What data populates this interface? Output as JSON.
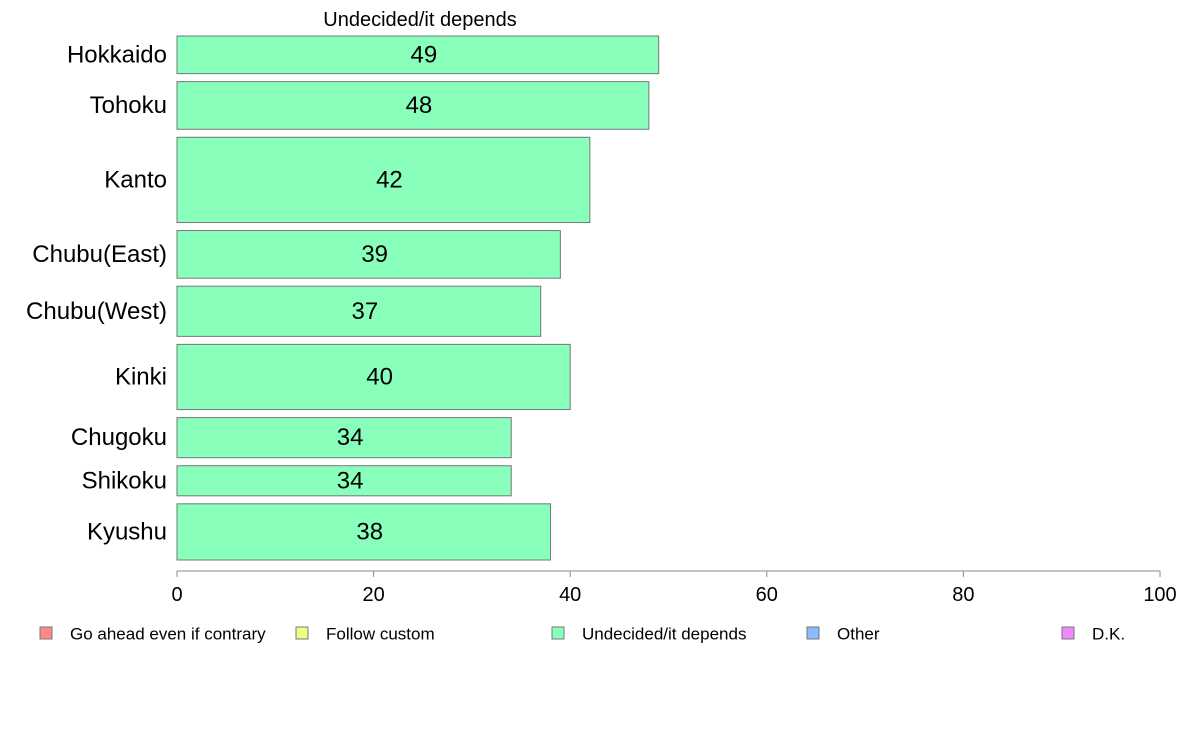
{
  "chart_data": {
    "type": "bar",
    "orientation": "horizontal",
    "title": "Undecided/it depends",
    "categories": [
      "Hokkaido",
      "Tohoku",
      "Kanto",
      "Chubu(East)",
      "Chubu(West)",
      "Kinki",
      "Chugoku",
      "Shikoku",
      "Kyushu"
    ],
    "values": [
      49,
      48,
      42,
      39,
      37,
      40,
      34,
      34,
      38
    ],
    "bar_relative_weights": [
      0.75,
      0.95,
      1.7,
      0.95,
      1.0,
      1.3,
      0.8,
      0.6,
      1.12
    ],
    "xlim": [
      0,
      100
    ],
    "xticks": [
      0,
      20,
      40,
      60,
      80,
      100
    ],
    "bar_color": "#88ffbb",
    "bar_stroke": "#777777",
    "grid": false,
    "legend_position": "bottom",
    "legend": [
      {
        "label": "Go ahead even if contrary",
        "color": "#ff8888"
      },
      {
        "label": "Follow custom",
        "color": "#eeff88"
      },
      {
        "label": "Undecided/it depends",
        "color": "#88ffbb"
      },
      {
        "label": "Other",
        "color": "#88bbff"
      },
      {
        "label": "D.K.",
        "color": "#ee88ff"
      }
    ]
  }
}
